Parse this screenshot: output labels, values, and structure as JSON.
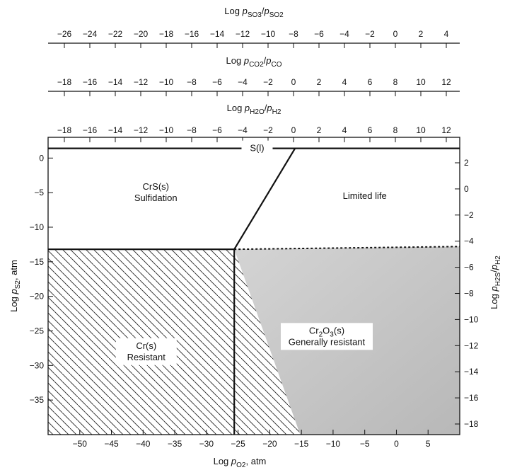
{
  "chart_data": {
    "type": "line",
    "title": "",
    "xlabel": "Log p_O2, atm",
    "ylabel": "Log p_S2, atm",
    "ylabel_right": "Log p_H2S/p_H2",
    "top_axes": [
      {
        "label": "Log p_SO3/p_SO2",
        "ticks": [
          "-26",
          "-24",
          "-22",
          "-20",
          "-18",
          "-16",
          "-14",
          "-12",
          "-10",
          "-8",
          "-6",
          "-4",
          "-2",
          "0",
          "2",
          "4"
        ]
      },
      {
        "label": "Log p_CO2/p_CO",
        "ticks": [
          "-18",
          "-16",
          "-14",
          "-12",
          "-10",
          "-8",
          "-6",
          "-4",
          "-2",
          "0",
          "2",
          "4",
          "6",
          "8",
          "10",
          "12"
        ]
      },
      {
        "label": "Log p_H2O/p_H2",
        "ticks": [
          "-18",
          "-16",
          "-14",
          "-12",
          "-10",
          "-8",
          "-6",
          "-4",
          "-2",
          "0",
          "2",
          "4",
          "6",
          "8",
          "10",
          "12"
        ]
      }
    ],
    "x_ticks": [
      "-50",
      "-45",
      "-40",
      "-35",
      "-30",
      "-25",
      "-20",
      "-15",
      "-10",
      "-5",
      "0",
      "5"
    ],
    "y_ticks": [
      "0",
      "-5",
      "-10",
      "-15",
      "-20",
      "-25",
      "-30",
      "-35"
    ],
    "y_right_ticks": [
      "2",
      "0",
      "-2",
      "-4",
      "-6",
      "-8",
      "-10",
      "-12",
      "-14",
      "-16",
      "-18"
    ],
    "xlim": [
      -55,
      10
    ],
    "ylim": [
      -40,
      3
    ],
    "boundaries": [
      {
        "kind": "solid",
        "points": [
          [
            -55,
            1.4
          ],
          [
            10,
            1.4
          ]
        ]
      },
      {
        "kind": "solid",
        "points": [
          [
            -55,
            -13.2
          ],
          [
            -25.6,
            -13.2
          ]
        ]
      },
      {
        "kind": "solid",
        "points": [
          [
            -25.6,
            -13.2
          ],
          [
            -25.6,
            -40
          ]
        ]
      },
      {
        "kind": "solid",
        "points": [
          [
            -25.6,
            -13.2
          ],
          [
            -16,
            1.4
          ]
        ]
      },
      {
        "kind": "dashed",
        "points": [
          [
            -25.6,
            -13.2
          ],
          [
            10,
            -12.8
          ]
        ]
      }
    ],
    "regions": [
      {
        "id": "s-liquid",
        "line1": "S(l)",
        "x": -22,
        "y": 1.4
      },
      {
        "id": "crs",
        "line1": "CrS(s)",
        "line2": "Sulfidation",
        "x": -38,
        "y": -5
      },
      {
        "id": "limited",
        "line1": "Limited life",
        "x": -5,
        "y": -5.5
      },
      {
        "id": "cr",
        "line1": "Cr(s)",
        "line2": "Resistant",
        "x": -39.5,
        "y": -28
      },
      {
        "id": "cr2o3",
        "line1": "Cr2O3(s)",
        "line2": "Generally resistant",
        "x": -11,
        "y": -25.8
      }
    ]
  }
}
